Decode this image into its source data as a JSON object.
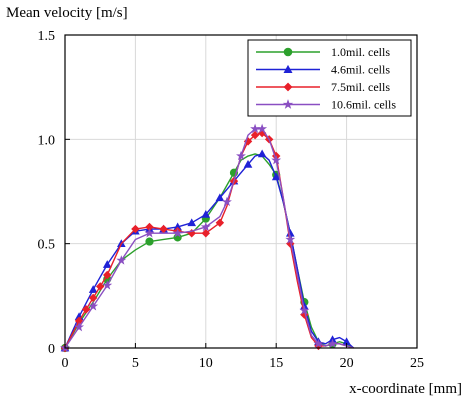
{
  "chart_data": {
    "type": "line",
    "title": "",
    "ylabel": "Mean velocity [m/s]",
    "xlabel": "x-coordinate [mm]",
    "xlim": [
      0,
      25
    ],
    "ylim": [
      0,
      1.5
    ],
    "x_ticks": [
      "0",
      "5",
      "10",
      "15",
      "20",
      "25"
    ],
    "y_ticks": [
      "0",
      "0.5",
      "1.0",
      "1.5"
    ],
    "grid": true,
    "legend_position": "top-right",
    "series": [
      {
        "name": "1.0mil. cells",
        "color": "#2ca02c",
        "marker": "circle",
        "x": [
          0,
          1,
          2,
          3,
          4,
          5,
          6,
          7,
          8,
          9,
          10,
          11,
          12,
          12.5,
          13,
          13.5,
          14,
          14.5,
          15,
          15.5,
          16,
          16.5,
          17,
          17.5,
          18,
          18.5,
          19,
          19.5,
          20,
          20.5
        ],
        "y": [
          0,
          0.12,
          0.22,
          0.33,
          0.42,
          0.47,
          0.51,
          0.52,
          0.53,
          0.55,
          0.62,
          0.72,
          0.84,
          0.9,
          0.92,
          0.93,
          0.92,
          0.88,
          0.83,
          0.7,
          0.55,
          0.38,
          0.22,
          0.1,
          0.03,
          0.01,
          0.02,
          0.03,
          0.02,
          0.0
        ],
        "marker_x": [
          0,
          3,
          6,
          8,
          10,
          12,
          15,
          17,
          19
        ]
      },
      {
        "name": "4.6mil. cells",
        "color": "#1f22d6",
        "marker": "triangle",
        "x": [
          0,
          1,
          2,
          3,
          4,
          5,
          6,
          7,
          8,
          9,
          10,
          11,
          12,
          13,
          13.5,
          14,
          14.5,
          15,
          15.5,
          16,
          16.5,
          17,
          17.5,
          18,
          18.5,
          19,
          19.5,
          20,
          20.5
        ],
        "y": [
          0,
          0.15,
          0.28,
          0.4,
          0.5,
          0.56,
          0.57,
          0.57,
          0.58,
          0.6,
          0.64,
          0.72,
          0.8,
          0.88,
          0.92,
          0.93,
          0.9,
          0.82,
          0.7,
          0.55,
          0.38,
          0.2,
          0.08,
          0.03,
          0.02,
          0.04,
          0.05,
          0.03,
          0.0
        ],
        "marker_x": [
          0,
          1,
          2,
          3,
          4,
          5,
          6,
          7,
          8,
          9,
          10,
          11,
          12,
          13,
          14,
          15,
          16,
          17,
          18,
          19,
          20
        ]
      },
      {
        "name": "7.5mil. cells",
        "color": "#e8202a",
        "marker": "diamond",
        "x": [
          0,
          1,
          2,
          3,
          4,
          5,
          6,
          7,
          8,
          9,
          10,
          11,
          11.5,
          12,
          12.5,
          13,
          13.5,
          14,
          14.5,
          15,
          15.5,
          16,
          16.5,
          17,
          17.5,
          18,
          18.5,
          19,
          19.5,
          20,
          20.5
        ],
        "y": [
          0,
          0.13,
          0.24,
          0.35,
          0.5,
          0.57,
          0.58,
          0.57,
          0.56,
          0.55,
          0.55,
          0.6,
          0.68,
          0.8,
          0.92,
          0.99,
          1.02,
          1.03,
          1.0,
          0.92,
          0.72,
          0.5,
          0.32,
          0.16,
          0.05,
          0.01,
          0.01,
          0.02,
          0.02,
          0.01,
          0.0
        ],
        "marker_x": [
          0,
          1,
          1.5,
          2,
          2.5,
          3,
          5,
          6,
          7,
          8,
          9,
          10,
          11,
          12,
          13,
          13.5,
          14,
          14.5,
          15,
          16,
          17,
          18
        ]
      },
      {
        "name": "10.6mil. cells",
        "color": "#8a4fc2",
        "marker": "star",
        "x": [
          0,
          1,
          2,
          3,
          4,
          5,
          6,
          7,
          8,
          9,
          10,
          11,
          11.5,
          12,
          12.5,
          13,
          13.5,
          14,
          14.5,
          15,
          15.5,
          16,
          16.5,
          17,
          17.5,
          18,
          18.5,
          19,
          19.5,
          20,
          20.5
        ],
        "y": [
          0,
          0.1,
          0.2,
          0.3,
          0.42,
          0.52,
          0.55,
          0.55,
          0.55,
          0.56,
          0.58,
          0.63,
          0.7,
          0.8,
          0.92,
          1.02,
          1.05,
          1.05,
          1.0,
          0.9,
          0.72,
          0.52,
          0.35,
          0.18,
          0.06,
          0.02,
          0.01,
          0.02,
          0.02,
          0.01,
          0.0
        ],
        "marker_x": [
          0,
          1,
          2,
          3,
          4,
          6,
          8,
          10,
          11.5,
          12.5,
          13.5,
          14,
          15,
          16,
          17,
          18,
          19
        ]
      }
    ]
  }
}
